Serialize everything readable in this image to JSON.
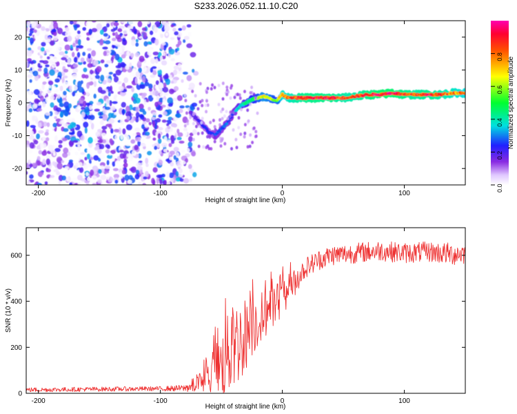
{
  "figure": {
    "title": "S233.2026.052.11.10.C20"
  },
  "chart_data": [
    {
      "type": "heatmap",
      "title": "S233.2026.052.11.10.C20",
      "xlabel": "Height of straight line (km)",
      "ylabel": "Frequency (Hz)",
      "xlim": [
        -210,
        150
      ],
      "ylim": [
        -25,
        25
      ],
      "xticks": [
        -200,
        -100,
        0,
        100
      ],
      "xtick_labels": [
        "-200",
        "-100",
        "0",
        "100"
      ],
      "yticks": [
        -20,
        -10,
        0,
        10,
        20
      ],
      "ytick_labels": [
        "-20",
        "-10",
        "0",
        "10",
        "20"
      ],
      "noise_region_x": [
        -210,
        -70
      ],
      "ridge": {
        "x": [
          -75,
          -70,
          -65,
          -60,
          -55,
          -50,
          -45,
          -40,
          -35,
          -30,
          -25,
          -20,
          -15,
          -10,
          -5,
          0,
          5,
          10,
          20,
          30,
          40,
          50,
          60,
          70,
          80,
          90,
          100,
          110,
          120,
          130,
          140,
          150
        ],
        "freq": [
          -3,
          -5,
          -7,
          -9,
          -10,
          -8,
          -6,
          -3,
          -1,
          0,
          1,
          1.5,
          2,
          1.5,
          0.5,
          2.5,
          1.5,
          1.5,
          1.5,
          1.5,
          1.5,
          1.5,
          2,
          2.5,
          2.5,
          3,
          2.5,
          2.5,
          2.5,
          2.5,
          3,
          3
        ],
        "amplitude": [
          0.2,
          0.2,
          0.25,
          0.25,
          0.3,
          0.3,
          0.3,
          0.3,
          0.4,
          0.45,
          0.5,
          0.6,
          0.7,
          0.65,
          0.55,
          0.85,
          0.85,
          0.9,
          0.95,
          0.95,
          0.95,
          0.9,
          0.9,
          0.95,
          1.0,
          1.0,
          0.95,
          0.9,
          0.95,
          0.9,
          0.85,
          0.8
        ]
      },
      "colorbar": {
        "label": "Normalized spectral amplitude",
        "range": [
          0,
          1
        ],
        "ticks": [
          0.0,
          0.2,
          0.4,
          0.6,
          0.8
        ],
        "tick_labels": [
          "0.0",
          "0.2",
          "0.4",
          "0.6",
          "0.8"
        ]
      }
    },
    {
      "type": "line",
      "xlabel": "Height of straight line (km)",
      "ylabel": "SNR (10 * v/v)",
      "xlim": [
        -210,
        150
      ],
      "ylim": [
        0,
        720
      ],
      "xticks": [
        -200,
        -100,
        0,
        100
      ],
      "xtick_labels": [
        "-200",
        "-100",
        "0",
        "100"
      ],
      "yticks": [
        0,
        200,
        400,
        600
      ],
      "ytick_labels": [
        "0",
        "200",
        "400",
        "600"
      ],
      "series": [
        {
          "name": "SNR",
          "color": "#ee3030",
          "trend_x": [
            -210,
            -150,
            -100,
            -80,
            -70,
            -60,
            -50,
            -45,
            -40,
            -35,
            -30,
            -25,
            -20,
            -15,
            -10,
            -5,
            0,
            5,
            10,
            15,
            20,
            30,
            40,
            60,
            80,
            100,
            120,
            140,
            150
          ],
          "trend_y": [
            15,
            18,
            20,
            22,
            40,
            70,
            120,
            160,
            200,
            230,
            260,
            290,
            320,
            340,
            370,
            390,
            420,
            450,
            480,
            520,
            550,
            580,
            600,
            610,
            620,
            610,
            615,
            605,
            610
          ],
          "spread": [
            10,
            10,
            10,
            15,
            40,
            80,
            150,
            180,
            200,
            180,
            160,
            140,
            120,
            110,
            100,
            90,
            80,
            70,
            60,
            50,
            45,
            45,
            45,
            45,
            45,
            45,
            45,
            50,
            50
          ]
        }
      ]
    }
  ]
}
